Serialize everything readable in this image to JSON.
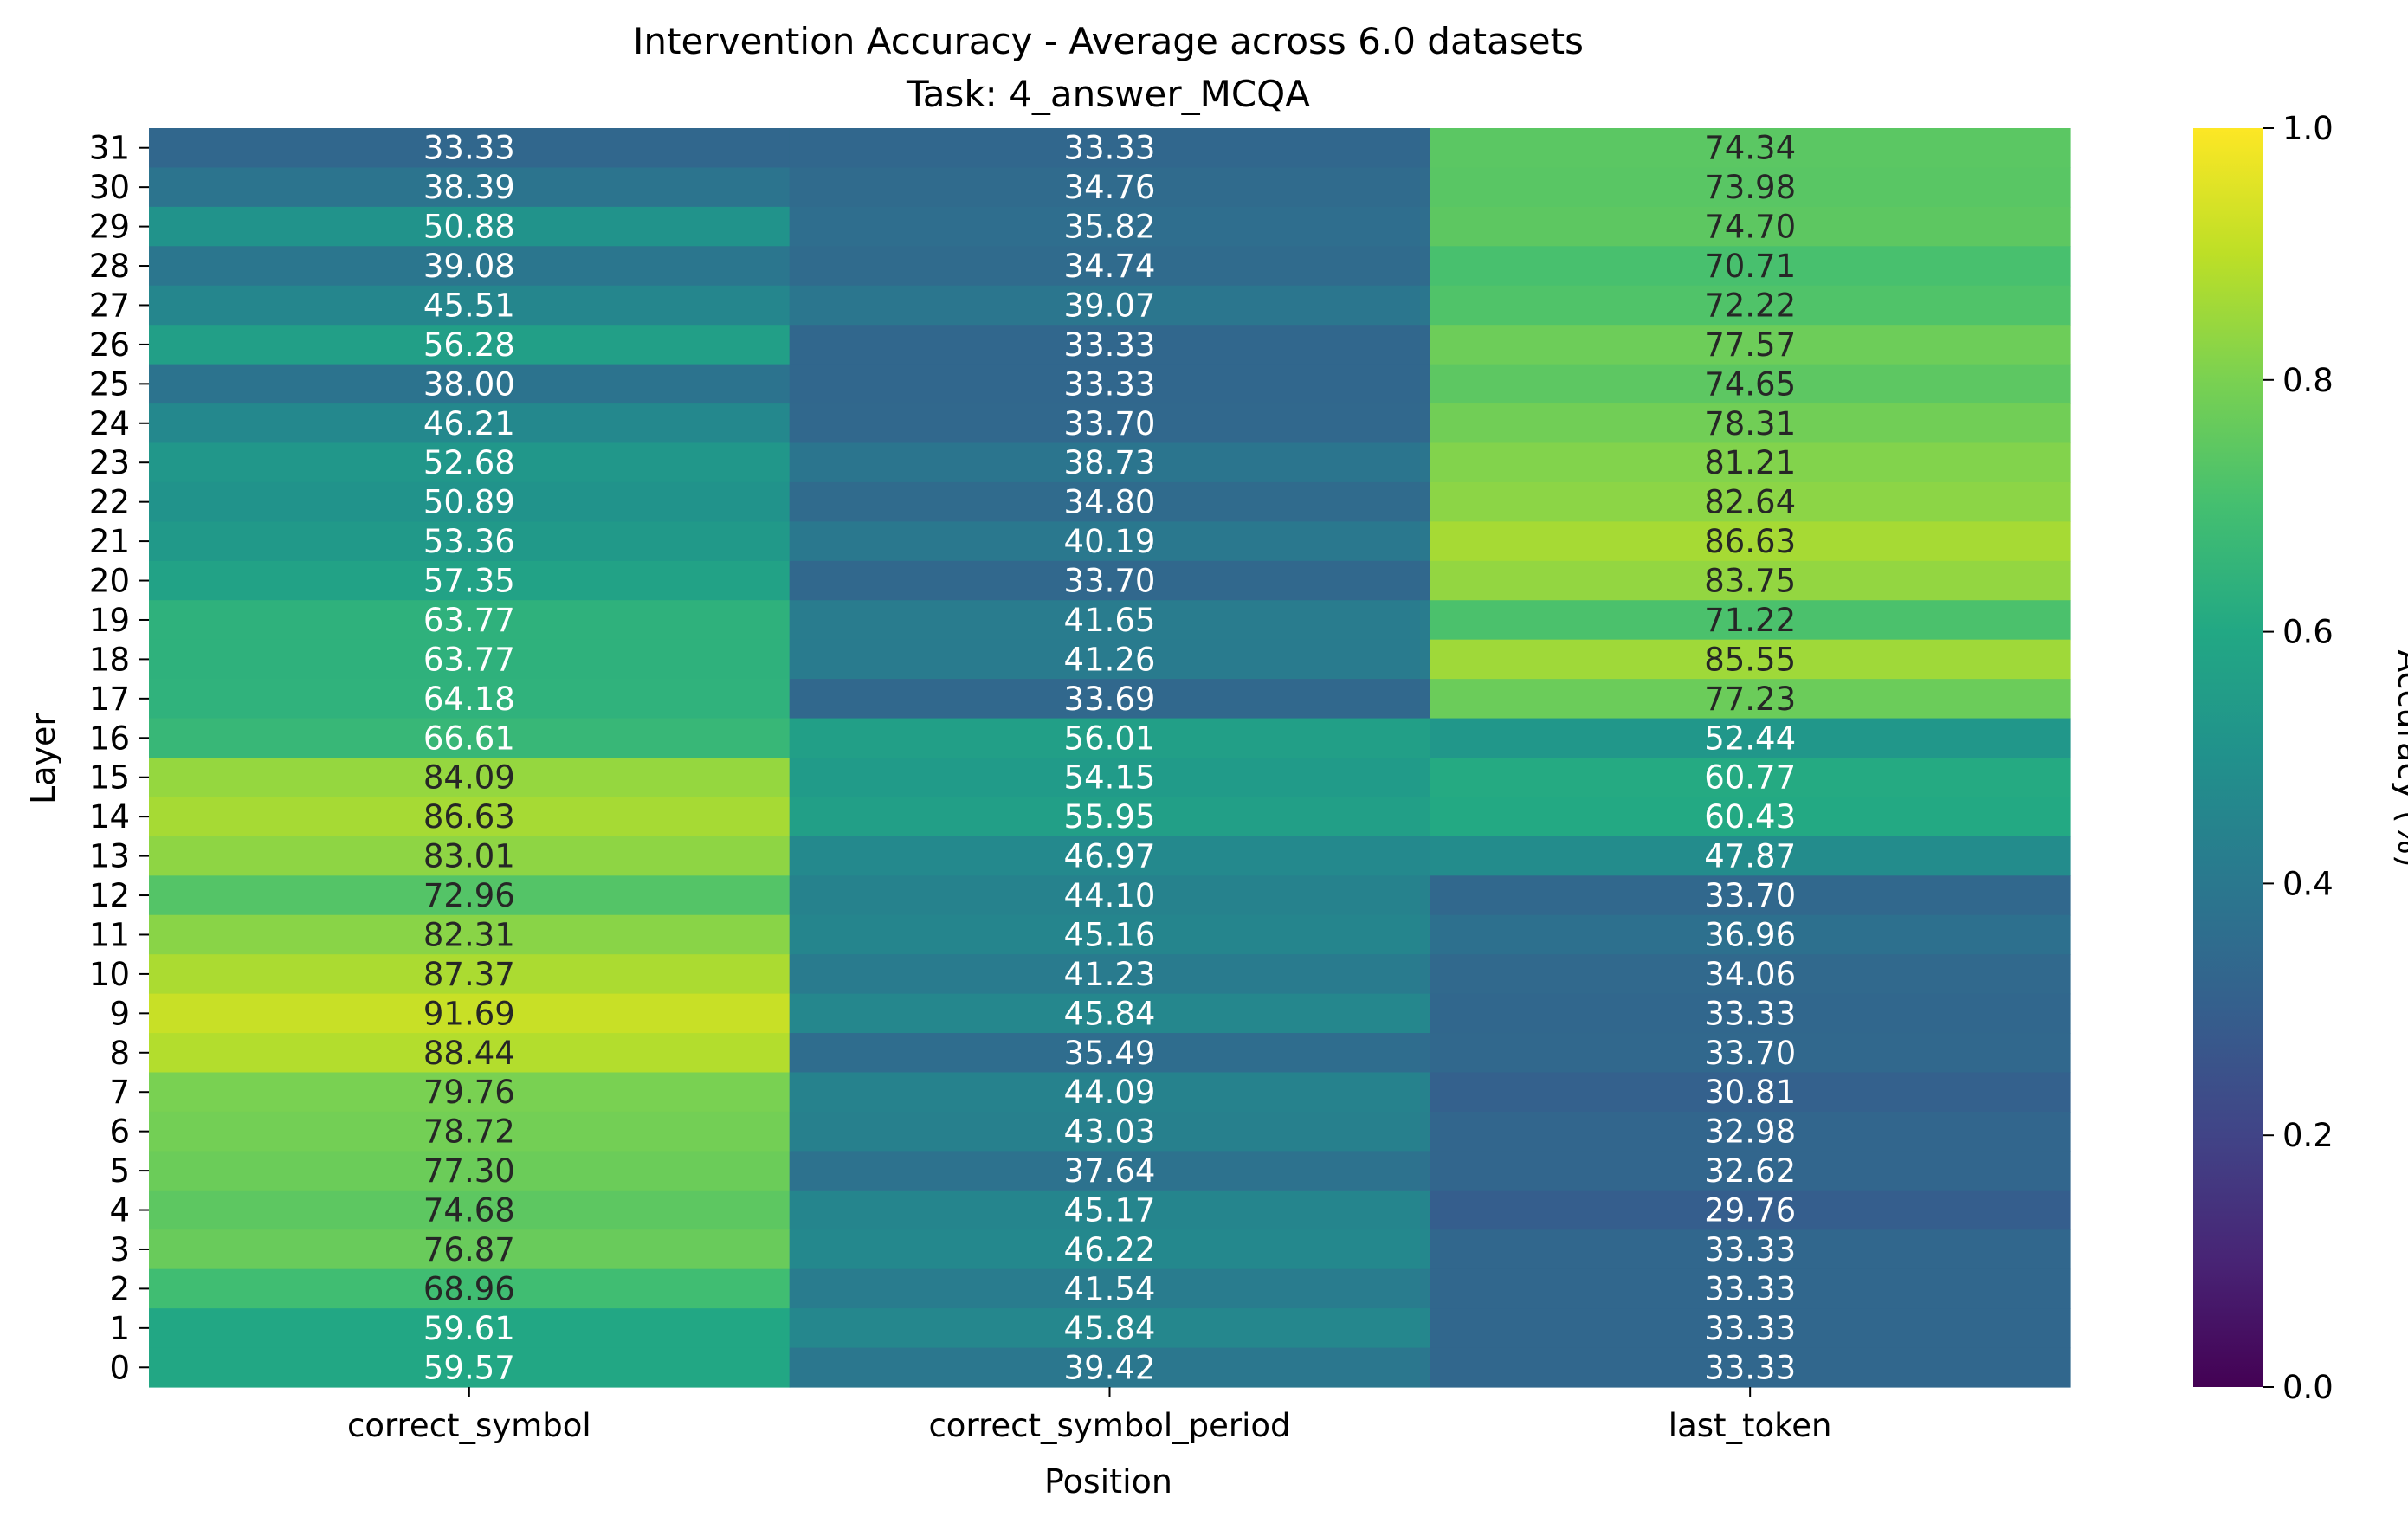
{
  "chart_data": {
    "type": "heatmap",
    "title": "Intervention Accuracy - Average across 6.0 datasets",
    "subtitle": "Task: 4_answer_MCQA",
    "xlabel": "Position",
    "ylabel": "Layer",
    "colorbar_label": "Accuracy (%)",
    "colormap": "viridis",
    "color_range": [
      0.0,
      1.0
    ],
    "colorbar_ticks": [
      "0.0",
      "0.2",
      "0.4",
      "0.6",
      "0.8",
      "1.0"
    ],
    "x_categories": [
      "correct_symbol",
      "correct_symbol_period",
      "last_token"
    ],
    "y_categories": [
      "31",
      "30",
      "29",
      "28",
      "27",
      "26",
      "25",
      "24",
      "23",
      "22",
      "21",
      "20",
      "19",
      "18",
      "17",
      "16",
      "15",
      "14",
      "13",
      "12",
      "11",
      "10",
      "9",
      "8",
      "7",
      "6",
      "5",
      "4",
      "3",
      "2",
      "1",
      "0"
    ],
    "values": [
      [
        33.33,
        33.33,
        74.34
      ],
      [
        38.39,
        34.76,
        73.98
      ],
      [
        50.88,
        35.82,
        74.7
      ],
      [
        39.08,
        34.74,
        70.71
      ],
      [
        45.51,
        39.07,
        72.22
      ],
      [
        56.28,
        33.33,
        77.57
      ],
      [
        38.0,
        33.33,
        74.65
      ],
      [
        46.21,
        33.7,
        78.31
      ],
      [
        52.68,
        38.73,
        81.21
      ],
      [
        50.89,
        34.8,
        82.64
      ],
      [
        53.36,
        40.19,
        86.63
      ],
      [
        57.35,
        33.7,
        83.75
      ],
      [
        63.77,
        41.65,
        71.22
      ],
      [
        63.77,
        41.26,
        85.55
      ],
      [
        64.18,
        33.69,
        77.23
      ],
      [
        66.61,
        56.01,
        52.44
      ],
      [
        84.09,
        54.15,
        60.77
      ],
      [
        86.63,
        55.95,
        60.43
      ],
      [
        83.01,
        46.97,
        47.87
      ],
      [
        72.96,
        44.1,
        33.7
      ],
      [
        82.31,
        45.16,
        36.96
      ],
      [
        87.37,
        41.23,
        34.06
      ],
      [
        91.69,
        45.84,
        33.33
      ],
      [
        88.44,
        35.49,
        33.7
      ],
      [
        79.76,
        44.09,
        30.81
      ],
      [
        78.72,
        43.03,
        32.98
      ],
      [
        77.3,
        37.64,
        32.62
      ],
      [
        74.68,
        45.17,
        29.76
      ],
      [
        76.87,
        46.22,
        33.33
      ],
      [
        68.96,
        41.54,
        33.33
      ],
      [
        59.61,
        45.84,
        33.33
      ],
      [
        59.57,
        39.42,
        33.33
      ]
    ]
  }
}
